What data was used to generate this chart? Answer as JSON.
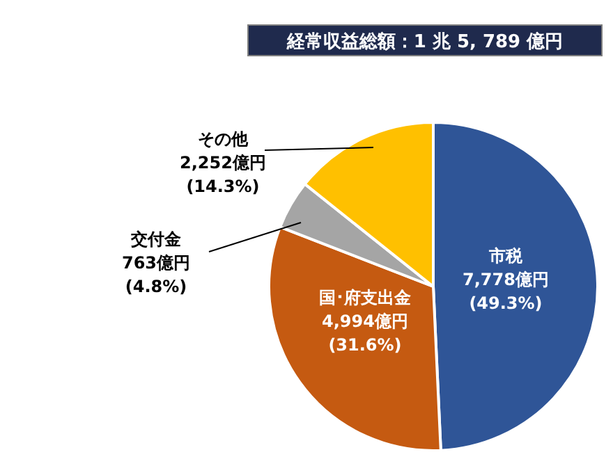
{
  "chart_data": {
    "type": "pie",
    "title": "経常収益総額：1 兆 5, 789 億円",
    "categories": [
      "市税",
      "国･府支出金",
      "交付金",
      "その他"
    ],
    "values": [
      7778,
      4994,
      763,
      2252
    ],
    "colors": [
      "#2f5597",
      "#c55a11",
      "#a5a5a5",
      "#ffc000"
    ],
    "value_labels": [
      "7,778億円\n(49.3%)",
      "4,994億円\n(31.6%)",
      "763億円\n(4.8%)",
      "2,252億円\n(14.3%)"
    ]
  }
}
